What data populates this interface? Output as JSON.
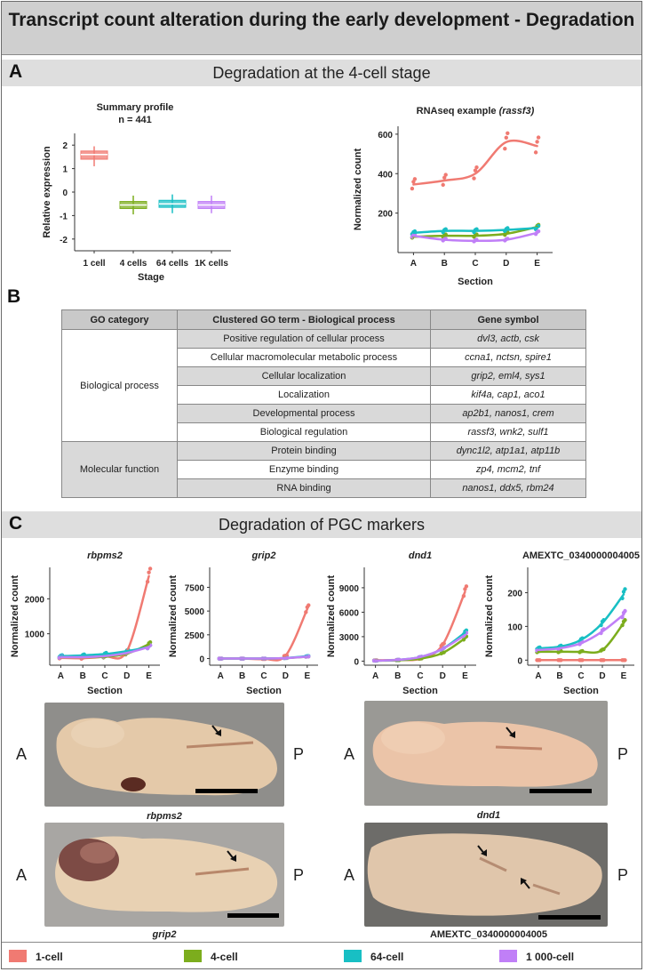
{
  "title": "Transcript count alteration during the early development - Degradation",
  "colors": {
    "c1": "#f07a72",
    "c4": "#7cad1d",
    "c64": "#18bfc4",
    "c1k": "#c07ff7"
  },
  "sectionA": {
    "letter": "A",
    "title": "Degradation at the 4-cell stage",
    "summary": {
      "title": "Summary profile",
      "subtitle": "n = 441",
      "ylabel": "Relative expression",
      "xlabel": "Stage",
      "yticks": [
        "2",
        "1",
        "0",
        "-1",
        "-2"
      ],
      "categories": [
        "1 cell",
        "4 cells",
        "64 cells",
        "1K cells"
      ]
    },
    "rnaseq": {
      "title_prefix": "RNAseq example ",
      "title_gene": "(rassf3)",
      "ylabel": "Normalized count",
      "xlabel": "Section",
      "yticks": [
        "600",
        "400",
        "200"
      ],
      "categories": [
        "A",
        "B",
        "C",
        "D",
        "E"
      ]
    }
  },
  "sectionB": {
    "letter": "B",
    "headers": [
      "GO category",
      "Clustered GO term - Biological process",
      "Gene symbol"
    ],
    "categories": [
      "Biological process",
      "Molecular function"
    ],
    "rows": [
      {
        "term": "Positive regulation of cellular process",
        "genes": "dvl3, actb, csk"
      },
      {
        "term": "Cellular macromolecular metabolic process",
        "genes": "ccna1, nctsn, spire1"
      },
      {
        "term": "Cellular localization",
        "genes": "grip2, eml4, sys1"
      },
      {
        "term": "Localization",
        "genes": "kif4a, cap1, aco1"
      },
      {
        "term": "Developmental process",
        "genes": "ap2b1, nanos1, crem"
      },
      {
        "term": "Biological regulation",
        "genes": "rassf3, wnk2, sulf1"
      },
      {
        "term": "Protein binding",
        "genes": "dync1l2, atp1a1, atp11b"
      },
      {
        "term": "Enzyme binding",
        "genes": "zp4, mcm2, tnf"
      },
      {
        "term": "RNA binding",
        "genes": "nanos1, ddx5, rbm24"
      }
    ]
  },
  "sectionC": {
    "letter": "C",
    "title": "Degradation of PGC markers",
    "ylabel": "Normalized count",
    "xlabel": "Section",
    "xcats": [
      "A",
      "B",
      "C",
      "D",
      "E"
    ],
    "plots": [
      {
        "title": "rbpms2",
        "yticks": [
          "2000",
          "1000"
        ]
      },
      {
        "title": "grip2",
        "yticks": [
          "7500",
          "5000",
          "2500",
          "0"
        ]
      },
      {
        "title": "dnd1",
        "yticks": [
          "9000",
          "6000",
          "3000",
          "0"
        ]
      },
      {
        "title": "AMEXTC_0340000004005",
        "yticks": [
          "200",
          "100",
          "0"
        ]
      }
    ],
    "anterior": "A",
    "posterior": "P",
    "photo_captions": [
      "rbpms2",
      "dnd1",
      "grip2",
      "AMEXTC_0340000004005"
    ]
  },
  "legend": [
    "1-cell",
    "4-cell",
    "64-cell",
    "1 000-cell"
  ],
  "chart_data": [
    {
      "type": "box",
      "title": "Summary profile",
      "subtitle": "n = 441",
      "xlabel": "Stage",
      "ylabel": "Relative expression",
      "categories": [
        "1 cell",
        "4 cells",
        "64 cells",
        "1K cells"
      ],
      "median": [
        1.6,
        -0.55,
        -0.5,
        -0.55
      ],
      "q1": [
        1.4,
        -0.7,
        -0.65,
        -0.7
      ],
      "q3": [
        1.75,
        -0.4,
        -0.35,
        -0.4
      ],
      "whisker_low": [
        1.1,
        -0.95,
        -0.9,
        -0.9
      ],
      "whisker_high": [
        1.95,
        -0.15,
        -0.1,
        -0.15
      ],
      "ylim": [
        -2.5,
        2.5
      ]
    },
    {
      "type": "line",
      "title": "RNAseq example (rassf3)",
      "xlabel": "Section",
      "ylabel": "Normalized count",
      "categories": [
        "A",
        "B",
        "C",
        "D",
        "E"
      ],
      "ylim": [
        0,
        640
      ],
      "series": [
        {
          "name": "1-cell",
          "values": [
            345,
            365,
            400,
            560,
            540
          ]
        },
        {
          "name": "4-cell",
          "values": [
            80,
            85,
            85,
            95,
            130
          ]
        },
        {
          "name": "64-cell",
          "values": [
            100,
            110,
            110,
            115,
            125
          ]
        },
        {
          "name": "1 000-cell",
          "values": [
            85,
            65,
            60,
            65,
            100
          ]
        }
      ]
    },
    {
      "type": "line",
      "title": "rbpms2",
      "xlabel": "Section",
      "ylabel": "Normalized count",
      "categories": [
        "A",
        "B",
        "C",
        "D",
        "E"
      ],
      "ylim": [
        100,
        2900
      ],
      "series": [
        {
          "name": "1-cell",
          "values": [
            310,
            300,
            350,
            500,
            2650
          ]
        },
        {
          "name": "4-cell",
          "values": [
            330,
            330,
            340,
            430,
            700
          ]
        },
        {
          "name": "64-cell",
          "values": [
            360,
            380,
            420,
            500,
            620
          ]
        },
        {
          "name": "1 000-cell",
          "values": [
            330,
            330,
            360,
            450,
            620
          ]
        }
      ]
    },
    {
      "type": "line",
      "title": "grip2",
      "xlabel": "Section",
      "ylabel": "Normalized count",
      "categories": [
        "A",
        "B",
        "C",
        "D",
        "E"
      ],
      "ylim": [
        -700,
        9600
      ],
      "series": [
        {
          "name": "1-cell",
          "values": [
            0,
            0,
            -50,
            300,
            5200
          ]
        },
        {
          "name": "4-cell",
          "values": [
            0,
            0,
            0,
            50,
            200
          ]
        },
        {
          "name": "64-cell",
          "values": [
            0,
            0,
            0,
            50,
            250
          ]
        },
        {
          "name": "1 000-cell",
          "values": [
            0,
            0,
            0,
            50,
            200
          ]
        }
      ]
    },
    {
      "type": "line",
      "title": "dnd1",
      "xlabel": "Section",
      "ylabel": "Normalized count",
      "categories": [
        "A",
        "B",
        "C",
        "D",
        "E"
      ],
      "ylim": [
        -500,
        11500
      ],
      "series": [
        {
          "name": "1-cell",
          "values": [
            100,
            150,
            300,
            2000,
            8500
          ]
        },
        {
          "name": "4-cell",
          "values": [
            50,
            100,
            300,
            1000,
            2800
          ]
        },
        {
          "name": "64-cell",
          "values": [
            50,
            150,
            500,
            1500,
            3500
          ]
        },
        {
          "name": "1 000-cell",
          "values": [
            50,
            150,
            500,
            1500,
            3200
          ]
        }
      ]
    },
    {
      "type": "line",
      "title": "AMEXTC_0340000004005",
      "xlabel": "Section",
      "ylabel": "Normalized count",
      "categories": [
        "A",
        "B",
        "C",
        "D",
        "E"
      ],
      "ylim": [
        -15,
        275
      ],
      "series": [
        {
          "name": "1-cell",
          "values": [
            0,
            0,
            0,
            0,
            0
          ]
        },
        {
          "name": "4-cell",
          "values": [
            25,
            25,
            25,
            30,
            110
          ]
        },
        {
          "name": "64-cell",
          "values": [
            35,
            40,
            60,
            110,
            195
          ]
        },
        {
          "name": "1 000-cell",
          "values": [
            30,
            35,
            50,
            85,
            135
          ]
        }
      ]
    }
  ]
}
